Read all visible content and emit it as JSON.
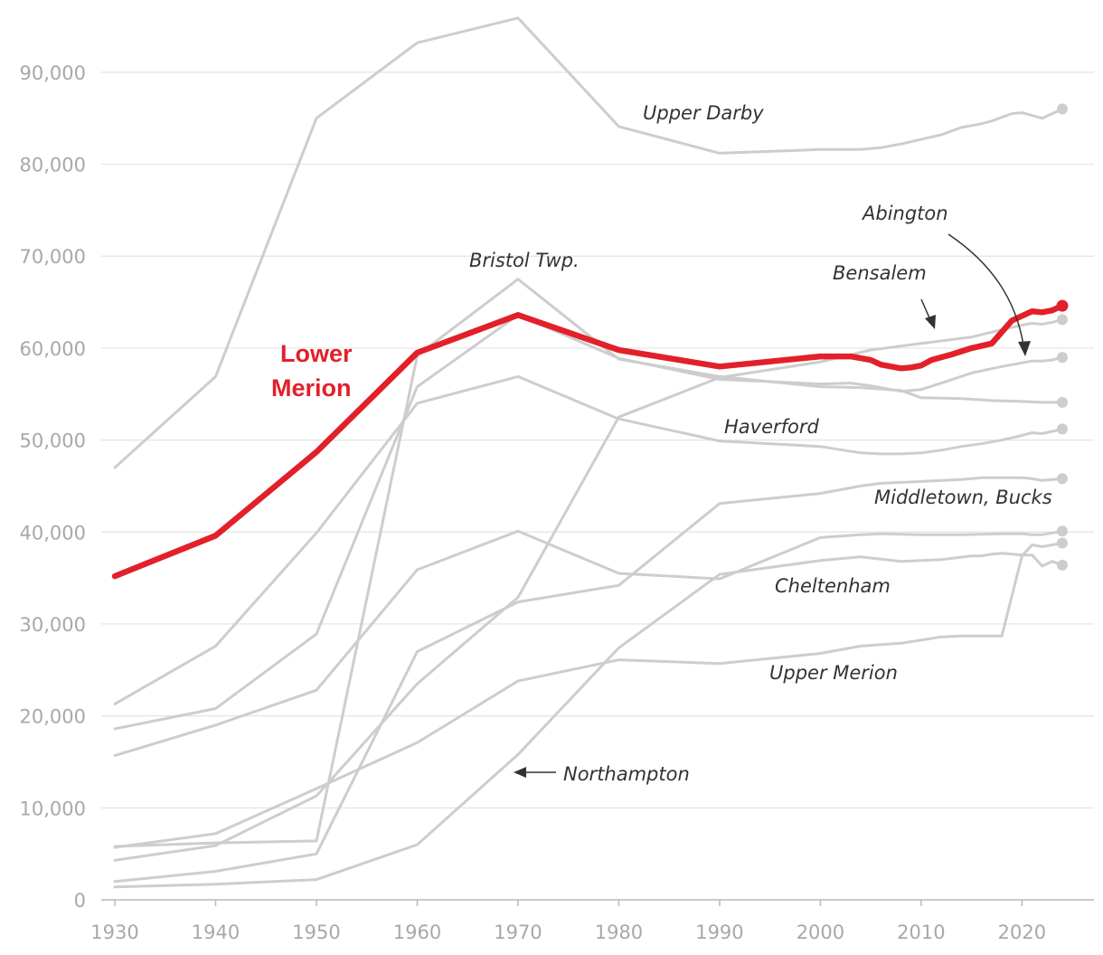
{
  "chart_data": {
    "type": "line",
    "title": "",
    "xlabel": "",
    "ylabel": "",
    "xlim": [
      1930,
      2024
    ],
    "ylim": [
      0,
      95000
    ],
    "x_ticks": [
      1930,
      1940,
      1950,
      1960,
      1970,
      1980,
      1990,
      2000,
      2010,
      2020
    ],
    "y_ticks": [
      {
        "value": 0,
        "label": "0"
      },
      {
        "value": 10000,
        "label": "10,000"
      },
      {
        "value": 20000,
        "label": "20,000"
      },
      {
        "value": 30000,
        "label": "30,000"
      },
      {
        "value": 40000,
        "label": "40,000"
      },
      {
        "value": 50000,
        "label": "50,000"
      },
      {
        "value": 60000,
        "label": "60,000"
      },
      {
        "value": 70000,
        "label": "70,000"
      },
      {
        "value": 80000,
        "label": "80,000"
      },
      {
        "value": 90000,
        "label": "90,000"
      }
    ],
    "highlight_color": "#e2202a",
    "other_color": "#cdcdcd",
    "series": [
      {
        "name": "Upper Darby",
        "highlight": false,
        "end_dot": true,
        "x": [
          1930,
          1940,
          1950,
          1960,
          1970,
          1980,
          1990,
          2000,
          2004,
          2006,
          2008,
          2010,
          2012,
          2014,
          2016,
          2017,
          2018,
          2019,
          2020,
          2021,
          2022,
          2024
        ],
        "y": [
          47000,
          56900,
          85000,
          93200,
          95900,
          84100,
          81200,
          81600,
          81600,
          81800,
          82200,
          82700,
          83200,
          84000,
          84400,
          84700,
          85100,
          85500,
          85600,
          85300,
          85000,
          86000
        ]
      },
      {
        "name": "Bristol Twp.",
        "highlight": false,
        "end_dot": true,
        "x": [
          1930,
          1940,
          1950,
          1960,
          1970,
          1980,
          1990,
          2000,
          2004,
          2008,
          2010,
          2014,
          2017,
          2020,
          2022,
          2024
        ],
        "y": [
          5800,
          6200,
          6400,
          59200,
          67500,
          58800,
          56900,
          55800,
          55700,
          55400,
          54600,
          54500,
          54300,
          54200,
          54100,
          54100
        ]
      },
      {
        "name": "Bensalem",
        "highlight": false,
        "end_dot": true,
        "x": [
          1930,
          1940,
          1950,
          1960,
          1970,
          1980,
          1990,
          2000,
          2005,
          2010,
          2015,
          2018,
          2020,
          2021,
          2022,
          2023,
          2024
        ],
        "y": [
          4300,
          5900,
          11300,
          23500,
          32900,
          52500,
          56800,
          58500,
          59800,
          60500,
          61200,
          62000,
          62500,
          62700,
          62600,
          62800,
          63100
        ]
      },
      {
        "name": "Abington",
        "highlight": false,
        "end_dot": true,
        "x": [
          1930,
          1940,
          1950,
          1960,
          1970,
          1980,
          1990,
          2000,
          2003,
          2005,
          2008,
          2010,
          2012,
          2015,
          2018,
          2020,
          2021,
          2022,
          2023,
          2024
        ],
        "y": [
          18600,
          20800,
          28900,
          55800,
          63600,
          58900,
          56600,
          56100,
          56200,
          55900,
          55300,
          55500,
          56200,
          57300,
          58000,
          58400,
          58600,
          58600,
          58700,
          59000
        ]
      },
      {
        "name": "Haverford",
        "highlight": false,
        "end_dot": true,
        "x": [
          1930,
          1940,
          1950,
          1960,
          1970,
          1980,
          1990,
          2000,
          2004,
          2006,
          2008,
          2010,
          2012,
          2014,
          2016,
          2018,
          2020,
          2021,
          2022,
          2024
        ],
        "y": [
          21300,
          27600,
          39900,
          54000,
          56900,
          52300,
          49900,
          49300,
          48600,
          48500,
          48500,
          48600,
          48900,
          49300,
          49600,
          50000,
          50500,
          50800,
          50700,
          51200
        ]
      },
      {
        "name": "Middletown, Bucks",
        "highlight": false,
        "end_dot": true,
        "x": [
          1930,
          1940,
          1950,
          1960,
          1970,
          1980,
          1990,
          2000,
          2004,
          2006,
          2010,
          2014,
          2016,
          2018,
          2020,
          2021,
          2022,
          2024
        ],
        "y": [
          2000,
          3100,
          5000,
          27000,
          32400,
          34200,
          43100,
          44200,
          45000,
          45300,
          45500,
          45700,
          45900,
          45900,
          45900,
          45800,
          45600,
          45800
        ]
      },
      {
        "name": "Cheltenham",
        "highlight": false,
        "end_dot": true,
        "x": [
          1930,
          1940,
          1950,
          1960,
          1970,
          1980,
          1990,
          2000,
          2004,
          2006,
          2010,
          2014,
          2018,
          2020,
          2021,
          2022,
          2024
        ],
        "y": [
          15700,
          19000,
          22800,
          35900,
          40100,
          35500,
          34900,
          39400,
          39700,
          39800,
          39700,
          39700,
          39800,
          39800,
          39700,
          39700,
          40100
        ]
      },
      {
        "name": "Upper Merion",
        "highlight": false,
        "end_dot": true,
        "x": [
          1930,
          1940,
          1950,
          1960,
          1970,
          1980,
          1990,
          2000,
          2004,
          2008,
          2012,
          2014,
          2016,
          2018,
          2020,
          2021,
          2022,
          2023,
          2024
        ],
        "y": [
          5700,
          7200,
          12100,
          17100,
          23800,
          26100,
          25700,
          26800,
          27600,
          27900,
          28600,
          28700,
          28700,
          28700,
          37400,
          38600,
          38400,
          38600,
          38800
        ]
      },
      {
        "name": "Northampton",
        "highlight": false,
        "end_dot": true,
        "x": [
          1930,
          1940,
          1950,
          1960,
          1970,
          1980,
          1990,
          2000,
          2004,
          2008,
          2012,
          2015,
          2016,
          2017,
          2018,
          2019,
          2020,
          2021,
          2022,
          2023,
          2024
        ],
        "y": [
          1400,
          1700,
          2200,
          6000,
          15800,
          27400,
          35400,
          36900,
          37300,
          36800,
          37000,
          37400,
          37400,
          37600,
          37700,
          37600,
          37500,
          37500,
          36300,
          36800,
          36400
        ]
      },
      {
        "name": "Lower Merion",
        "highlight": true,
        "end_dot": true,
        "x": [
          1930,
          1940,
          1950,
          1960,
          1970,
          1980,
          1990,
          2000,
          2003,
          2005,
          2006,
          2008,
          2009,
          2010,
          2011,
          2013,
          2015,
          2017,
          2019,
          2021,
          2022,
          2023,
          2024
        ],
        "y": [
          35200,
          39600,
          48700,
          59500,
          63600,
          59800,
          58000,
          59100,
          59100,
          58700,
          58200,
          57800,
          57900,
          58100,
          58700,
          59300,
          60000,
          60500,
          63000,
          64000,
          63900,
          64100,
          64600
        ]
      }
    ],
    "annotations": [
      {
        "text": "Upper Darby",
        "series": "Upper Darby"
      },
      {
        "text": "Bristol Twp.",
        "series": "Bristol Twp."
      },
      {
        "text": "Abington",
        "series": "Abington"
      },
      {
        "text": "Bensalem",
        "series": "Bensalem"
      },
      {
        "text": "Haverford",
        "series": "Haverford"
      },
      {
        "text": "Middletown, Bucks",
        "series": "Middletown, Bucks"
      },
      {
        "text": "Cheltenham",
        "series": "Cheltenham"
      },
      {
        "text": "Upper Merion",
        "series": "Upper Merion"
      },
      {
        "text": "Northampton",
        "series": "Northampton"
      }
    ],
    "highlight_label": {
      "line1": "Lower",
      "line2": "Merion"
    }
  }
}
